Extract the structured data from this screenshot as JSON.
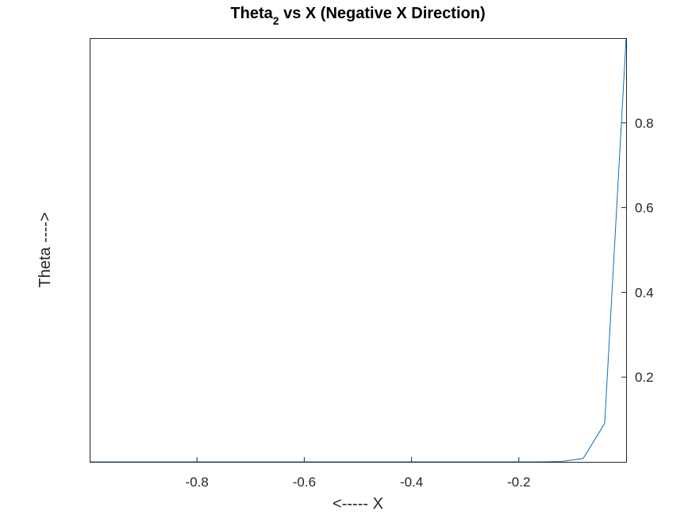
{
  "chart_data": {
    "type": "line",
    "title": {
      "main": "Theta",
      "subscript": "2",
      "rest": " vs X (Negative X Direction)"
    },
    "xlabel": "<----- X",
    "ylabel": "Theta ---->",
    "xlim": [
      -1,
      0
    ],
    "ylim": [
      0,
      1
    ],
    "y_axis_location": "right",
    "grid": false,
    "box": true,
    "xticks": [
      -0.8,
      -0.6,
      -0.4,
      -0.2
    ],
    "xtick_labels": [
      "-0.8",
      "-0.6",
      "-0.4",
      "-0.2"
    ],
    "yticks": [
      0.2,
      0.4,
      0.6,
      0.8
    ],
    "ytick_labels": [
      "0.2",
      "0.4",
      "0.6",
      "0.8"
    ],
    "series": [
      {
        "color": "#0072BD",
        "x": [
          -1.0,
          -0.96,
          -0.92,
          -0.88,
          -0.84,
          -0.8,
          -0.76,
          -0.72,
          -0.68,
          -0.64,
          -0.6,
          -0.56,
          -0.52,
          -0.48,
          -0.44,
          -0.4,
          -0.36,
          -0.32,
          -0.28,
          -0.24,
          -0.2,
          -0.16,
          -0.12,
          -0.08,
          -0.04,
          0.0
        ],
        "y": [
          0,
          0,
          0,
          0,
          0,
          0,
          0,
          0,
          0,
          0,
          0,
          0,
          0,
          0,
          0,
          0,
          0,
          0,
          0,
          0,
          0,
          0.0001,
          0.0009,
          0.0082,
          0.0907,
          1.0
        ]
      }
    ]
  }
}
